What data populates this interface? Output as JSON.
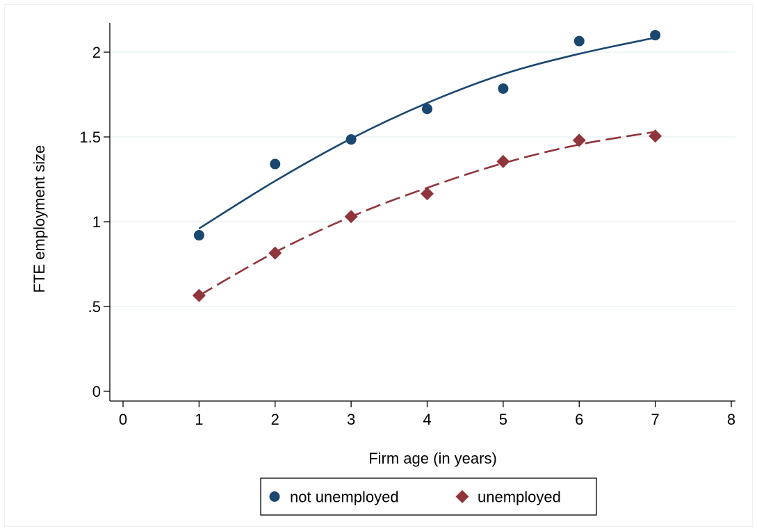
{
  "chart_data": {
    "type": "scatter",
    "title": "",
    "xlabel": "Firm age (in years)",
    "ylabel": "FTE employment size",
    "xlim": [
      0,
      8
    ],
    "ylim": [
      0,
      2.2
    ],
    "x_ticks": [
      0,
      1,
      2,
      3,
      4,
      5,
      6,
      7,
      8
    ],
    "x_tick_labels": [
      "0",
      "1",
      "2",
      "3",
      "4",
      "5",
      "6",
      "7",
      "8"
    ],
    "y_ticks": [
      0,
      0.5,
      1,
      1.5,
      2
    ],
    "y_tick_labels": [
      "0",
      ".5",
      "1",
      "1.5",
      "2"
    ],
    "grid": "horizontal",
    "legend_position": "bottom",
    "series": [
      {
        "name": "not unemployed",
        "marker": "circle",
        "line_style": "solid",
        "color": "#1a476f",
        "x": [
          1,
          2,
          3,
          4,
          5,
          6,
          7
        ],
        "values": [
          0.92,
          1.34,
          1.485,
          1.665,
          1.785,
          2.065,
          2.1
        ],
        "fit_x": [
          1,
          2,
          3,
          4,
          5,
          6,
          7
        ],
        "fit_y": [
          0.96,
          1.24,
          1.49,
          1.7,
          1.87,
          1.99,
          2.085
        ]
      },
      {
        "name": "unemployed",
        "marker": "diamond",
        "line_style": "dashed",
        "color": "#90353b",
        "x": [
          1,
          2,
          3,
          4,
          5,
          6,
          7
        ],
        "values": [
          0.565,
          0.815,
          1.03,
          1.165,
          1.355,
          1.48,
          1.505
        ],
        "fit_x": [
          1,
          2,
          3,
          4,
          5,
          6,
          7
        ],
        "fit_y": [
          0.565,
          0.82,
          1.03,
          1.2,
          1.345,
          1.455,
          1.53
        ]
      }
    ]
  },
  "colors": {
    "grid": "#eaf2f3",
    "axis": "#000000"
  }
}
